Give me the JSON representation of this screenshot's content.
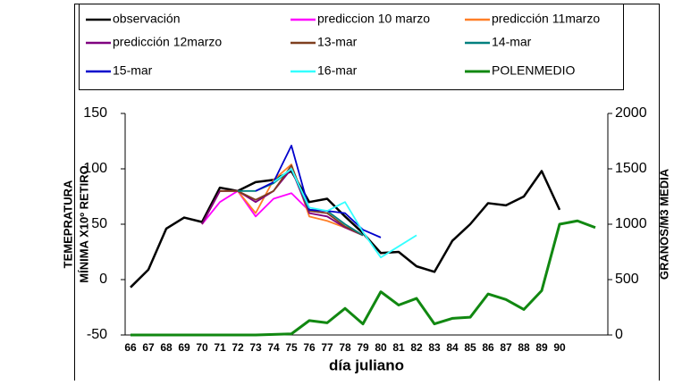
{
  "chart_data": {
    "type": "line",
    "categories": [
      "66",
      "67",
      "68",
      "69",
      "70",
      "71",
      "72",
      "73",
      "74",
      "75",
      "76",
      "77",
      "78",
      "79",
      "80",
      "81",
      "82",
      "83",
      "84",
      "85",
      "86",
      "87",
      "88",
      "89",
      "90",
      null,
      null
    ],
    "xlabel": "día juliano",
    "ylabel": [
      "TEMEPRATURA",
      "MÍNIMA X10º RETIRO"
    ],
    "y2label": "GRANOS/M3 MEDIA",
    "ylim": [
      -50,
      150
    ],
    "yticks": [
      -50,
      0,
      50,
      100,
      150
    ],
    "y2lim": [
      0,
      2000
    ],
    "y2ticks": [
      0,
      500,
      1000,
      1500,
      2000
    ],
    "series": [
      {
        "name": "observación",
        "color": "#000000",
        "values": [
          -7,
          9,
          46,
          56,
          52,
          83,
          80,
          88,
          90,
          98,
          70,
          73,
          57,
          42,
          24,
          25,
          12,
          7,
          35,
          50,
          69,
          67,
          75,
          98,
          63,
          null,
          null
        ]
      },
      {
        "name": "prediccion 10 marzo",
        "color": "#ff00ff",
        "values": [
          null,
          null,
          null,
          null,
          50,
          70,
          80,
          57,
          73,
          78,
          62,
          60,
          null,
          null,
          null,
          null,
          null,
          null,
          null,
          null,
          null,
          null,
          null,
          null,
          null,
          null,
          null
        ]
      },
      {
        "name": "predicción 11marzo",
        "color": "#ff7f27",
        "values": [
          null,
          null,
          null,
          null,
          50,
          80,
          80,
          60,
          90,
          104,
          57,
          53,
          47,
          40,
          null,
          null,
          null,
          null,
          null,
          null,
          null,
          null,
          null,
          null,
          null,
          null,
          null
        ]
      },
      {
        "name": "predicción 12marzo",
        "color": "#800080",
        "values": [
          null,
          null,
          null,
          null,
          50,
          80,
          80,
          70,
          80,
          100,
          60,
          57,
          47,
          40,
          null,
          null,
          null,
          null,
          null,
          null,
          null,
          null,
          null,
          null,
          null,
          null,
          null
        ]
      },
      {
        "name": "13-mar",
        "color": "#7f3f1f",
        "values": [
          null,
          null,
          null,
          null,
          null,
          80,
          80,
          72,
          80,
          103,
          62,
          60,
          48,
          40,
          null,
          null,
          null,
          null,
          null,
          null,
          null,
          null,
          null,
          null,
          null,
          null,
          null
        ]
      },
      {
        "name": "14-mar",
        "color": "#00807f",
        "values": [
          null,
          null,
          null,
          null,
          null,
          null,
          80,
          80,
          87,
          100,
          63,
          62,
          50,
          40,
          null,
          null,
          null,
          null,
          null,
          null,
          null,
          null,
          null,
          null,
          null,
          null,
          null
        ]
      },
      {
        "name": "15-mar",
        "color": "#0000cc",
        "values": [
          null,
          null,
          null,
          null,
          null,
          null,
          null,
          80,
          88,
          121,
          63,
          62,
          60,
          45,
          38,
          null,
          null,
          null,
          null,
          null,
          null,
          null,
          null,
          null,
          null,
          null,
          null
        ]
      },
      {
        "name": "16-mar",
        "color": "#33ffff",
        "values": [
          null,
          null,
          null,
          null,
          null,
          null,
          null,
          null,
          88,
          100,
          65,
          62,
          70,
          43,
          20,
          30,
          40,
          null,
          null,
          null,
          null,
          null,
          null,
          null,
          null,
          null,
          null
        ]
      },
      {
        "name": "POLENMEDIO",
        "color": "#118811",
        "axis": "y2",
        "values": [
          0,
          0,
          0,
          0,
          0,
          0,
          0,
          0,
          5,
          10,
          130,
          110,
          240,
          100,
          390,
          270,
          330,
          100,
          150,
          160,
          370,
          320,
          230,
          400,
          1000,
          1030,
          970
        ]
      }
    ]
  }
}
